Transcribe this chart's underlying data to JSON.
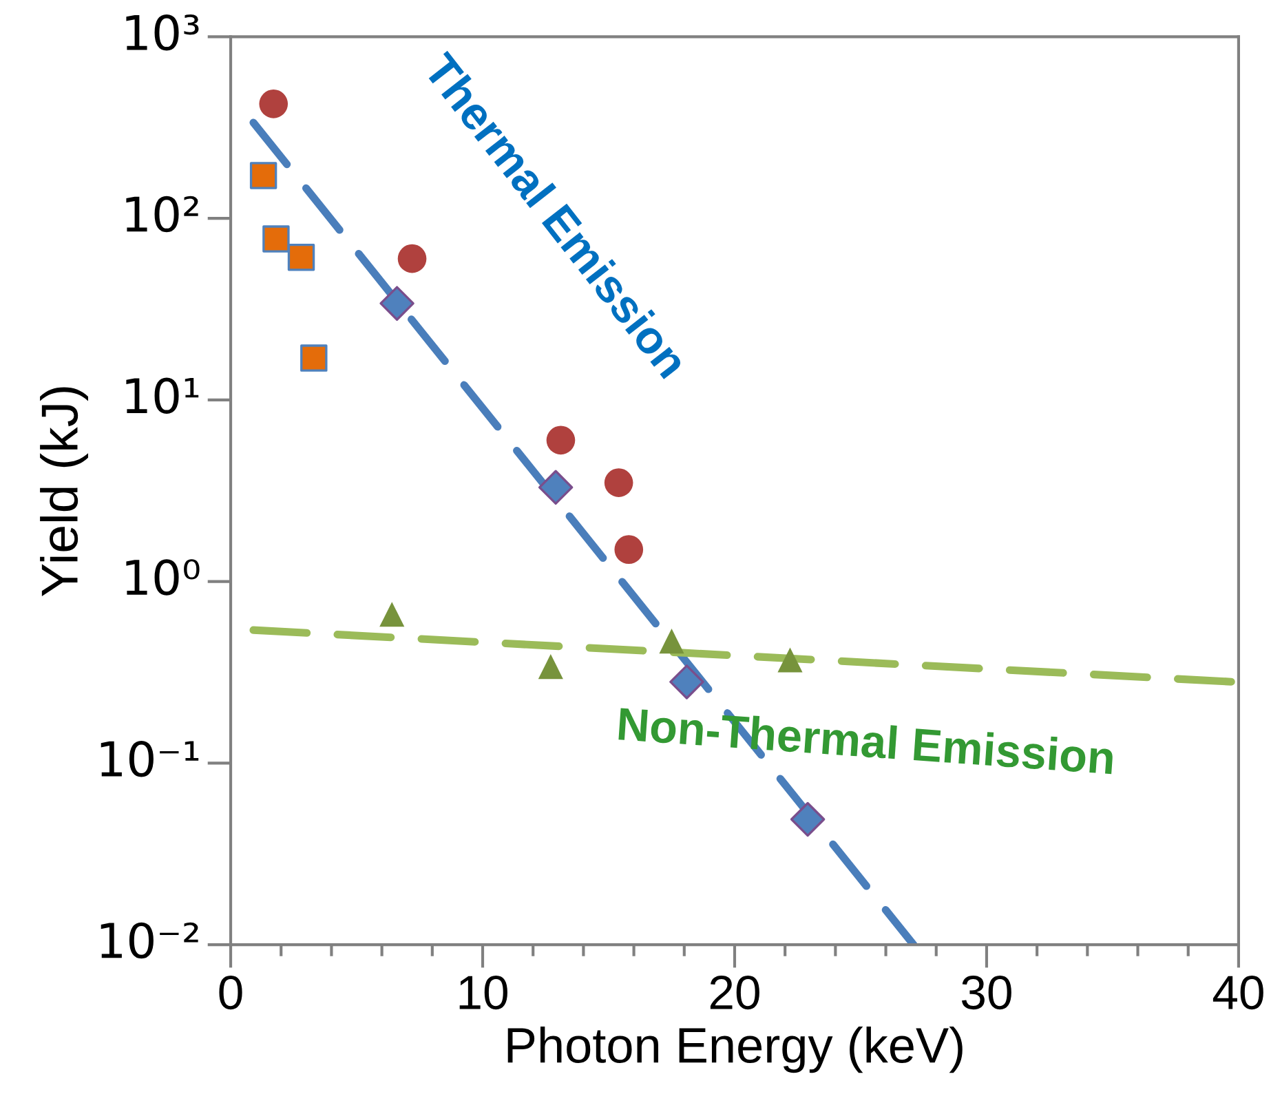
{
  "chart_data": {
    "type": "scatter",
    "xlabel": "Photon Energy (keV)",
    "ylabel": "Yield (kJ)",
    "log": "y",
    "xlim": [
      0,
      40
    ],
    "xticks": [
      0,
      10,
      20,
      30,
      40
    ],
    "ylim": [
      0.01,
      1000
    ],
    "yticks": [
      {
        "value": 0.01,
        "label": "10⁻²"
      },
      {
        "value": 0.1,
        "label": "10⁻¹"
      },
      {
        "value": 1,
        "label": "10⁰"
      },
      {
        "value": 10,
        "label": "10¹"
      },
      {
        "value": 100,
        "label": "10²"
      },
      {
        "value": 1000,
        "label": "10³"
      }
    ],
    "legend": false,
    "series": [
      {
        "marker": "circle",
        "color": "#b0413e",
        "x": [
          1.7,
          7.2,
          13.1,
          15.4,
          15.8
        ],
        "values": [
          427,
          60,
          6.0,
          3.5,
          1.5
        ]
      },
      {
        "marker": "square",
        "color": "#e46c0a",
        "x": [
          1.3,
          1.8,
          2.8,
          3.3
        ],
        "values": [
          172,
          77,
          61,
          17
        ]
      },
      {
        "marker": "diamond",
        "color": "#4f81bd",
        "x": [
          6.6,
          12.9,
          18.1,
          22.9
        ],
        "values": [
          34,
          3.3,
          0.28,
          0.049
        ]
      },
      {
        "marker": "triangle",
        "color": "#77933c",
        "x": [
          6.4,
          12.7,
          17.5,
          22.2
        ],
        "values": [
          0.66,
          0.34,
          0.47,
          0.37
        ]
      },
      {
        "type": "line",
        "line_style": "dashed",
        "color": "#4a7ebb",
        "x": [
          0.9,
          27.1
        ],
        "values": [
          337,
          0.01
        ]
      },
      {
        "type": "line",
        "line_style": "dashed",
        "color": "#9bbb59",
        "x": [
          0.9,
          39.8
        ],
        "values": [
          0.54,
          0.28
        ]
      }
    ],
    "annotations": [
      "Thermal Emission",
      "Non-Thermal Emission"
    ]
  }
}
